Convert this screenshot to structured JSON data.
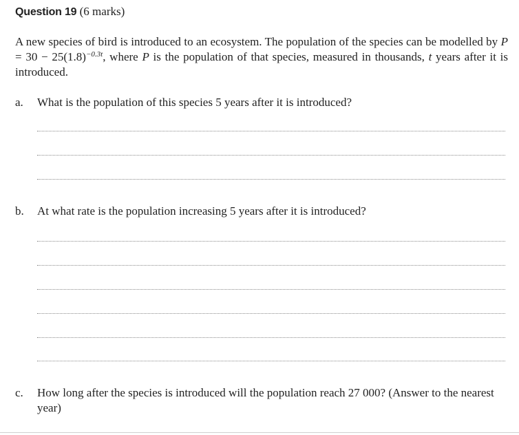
{
  "question": {
    "number_label": "Question 19",
    "marks_label": "(6 marks)"
  },
  "stem": {
    "text_1": "A new species of bird is introduced to an ecosystem. The population of the species can be modelled by ",
    "var_P": "P",
    "equation": " = 30 − 25(1.8)",
    "exponent": "−0.3t",
    "text_2": ", where ",
    "var_P2": "P",
    "text_3": " is the population of that species, measured in thousands, ",
    "var_t": "t",
    "text_4": " years after it is introduced."
  },
  "parts": [
    {
      "label": "a.",
      "text": "What is the population of this species 5 years after it is introduced?"
    },
    {
      "label": "b.",
      "text": "At what rate is the population increasing 5 years after it is introduced?"
    },
    {
      "label": "c.",
      "text": "How long after the species is introduced will the population reach 27 000? (Answer to the nearest year)"
    }
  ]
}
